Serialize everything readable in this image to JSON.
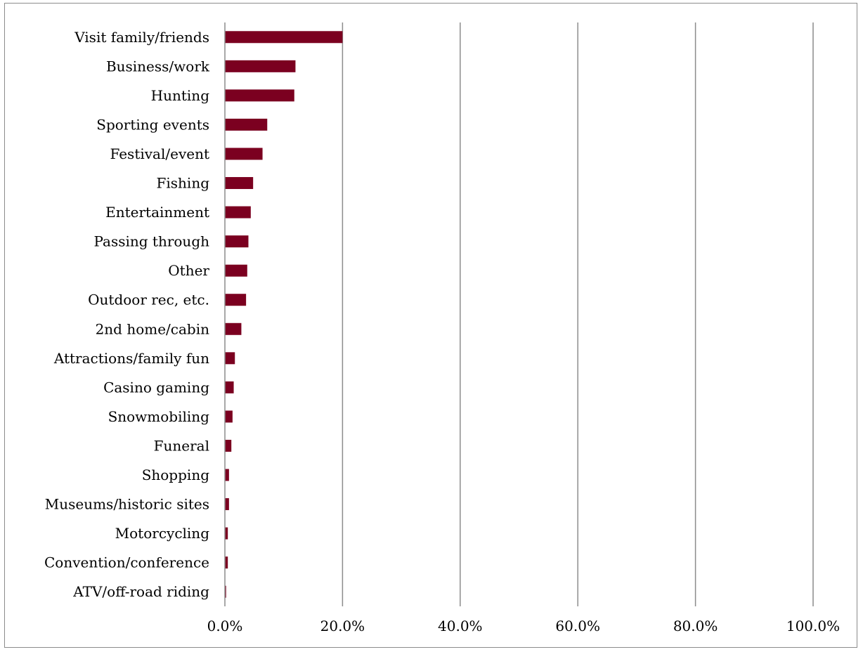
{
  "chart_data": {
    "type": "bar",
    "orientation": "horizontal",
    "title": "",
    "xlabel": "",
    "ylabel": "",
    "categories": [
      "Visit family/friends",
      "Business/work",
      "Hunting",
      "Sporting events",
      "Festival/event",
      "Fishing",
      "Entertainment",
      "Passing through",
      "Other",
      "Outdoor rec, etc.",
      "2nd home/cabin",
      "Attractions/family fun",
      "Casino gaming",
      "Snowmobiling",
      "Funeral",
      "Shopping",
      "Museums/historic sites",
      "Motorcycling",
      "Convention/conference",
      "ATV/off-road riding"
    ],
    "values": [
      20.0,
      12.0,
      11.8,
      7.2,
      6.4,
      4.8,
      4.4,
      4.0,
      3.8,
      3.6,
      2.8,
      1.7,
      1.5,
      1.3,
      1.1,
      0.7,
      0.7,
      0.5,
      0.5,
      0.2
    ],
    "xlim": [
      0,
      100
    ],
    "xticks": [
      0,
      20,
      40,
      60,
      80,
      100
    ],
    "xtick_labels": [
      "0.0%",
      "20.0%",
      "40.0%",
      "60.0%",
      "80.0%",
      "100.0%"
    ],
    "grid": "vertical",
    "legend": "none",
    "bar_color": "#7b0020",
    "grid_color": "#8c8c8c"
  }
}
